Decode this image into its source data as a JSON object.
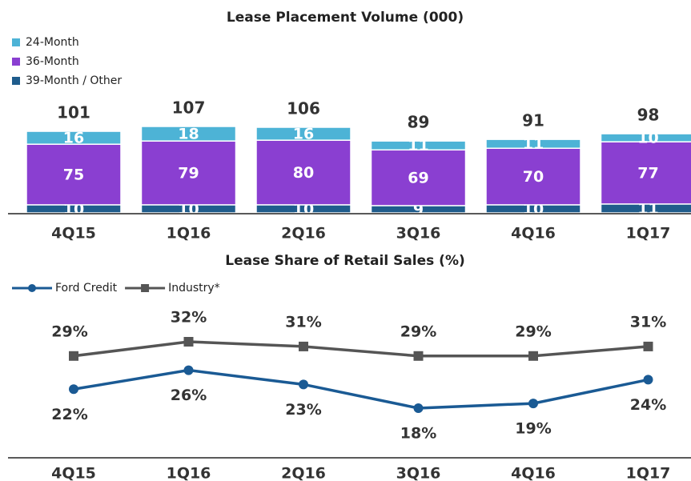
{
  "chart_data": [
    {
      "type": "stacked_bar",
      "title": "Lease Placement Volume (000)",
      "categories": [
        "4Q15",
        "1Q16",
        "2Q16",
        "3Q16",
        "4Q16",
        "1Q17"
      ],
      "series": [
        {
          "name": "39-Month / Other",
          "color": "#1f5c8c",
          "values": [
            10,
            10,
            10,
            9,
            10,
            11
          ]
        },
        {
          "name": "36-Month",
          "color": "#8a3fd1",
          "values": [
            75,
            79,
            80,
            69,
            70,
            77
          ]
        },
        {
          "name": "24-Month",
          "color": "#4db3d6",
          "values": [
            16,
            18,
            16,
            11,
            11,
            10
          ]
        }
      ],
      "totals": [
        101,
        107,
        106,
        89,
        91,
        98
      ],
      "legend": "upper left"
    },
    {
      "type": "line",
      "title": "Lease Share of Retail Sales (%)",
      "categories": [
        "4Q15",
        "1Q16",
        "2Q16",
        "3Q16",
        "4Q16",
        "1Q17"
      ],
      "series": [
        {
          "name": "Ford Credit",
          "color": "#1a5a94",
          "values": [
            22,
            26,
            23,
            18,
            19,
            24
          ],
          "value_labels": [
            "22%",
            "26%",
            "23%",
            "18%",
            "19%",
            "24%"
          ]
        },
        {
          "name": "Industry*",
          "color": "#555555",
          "values": [
            29,
            32,
            31,
            29,
            29,
            31
          ],
          "value_labels": [
            "29%",
            "32%",
            "31%",
            "29%",
            "29%",
            "31%"
          ]
        }
      ],
      "legend": "upper left"
    }
  ]
}
